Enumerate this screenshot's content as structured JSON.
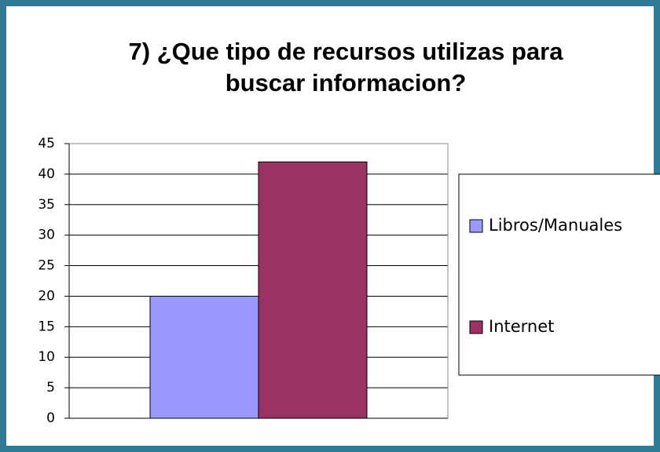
{
  "chart_data": {
    "type": "bar",
    "title": "7) ¿Que tipo de recursos utilizas para buscar informacion?",
    "categories": [
      null
    ],
    "series": [
      {
        "name": "Libros/Manuales",
        "color": "#9999ff",
        "values": [
          20
        ]
      },
      {
        "name": "Internet",
        "color": "#993366",
        "values": [
          42
        ]
      }
    ],
    "ylim": [
      0,
      45
    ],
    "yticks": [
      0,
      5,
      10,
      15,
      20,
      25,
      30,
      35,
      40,
      45
    ],
    "grid": true,
    "legend": "right"
  }
}
